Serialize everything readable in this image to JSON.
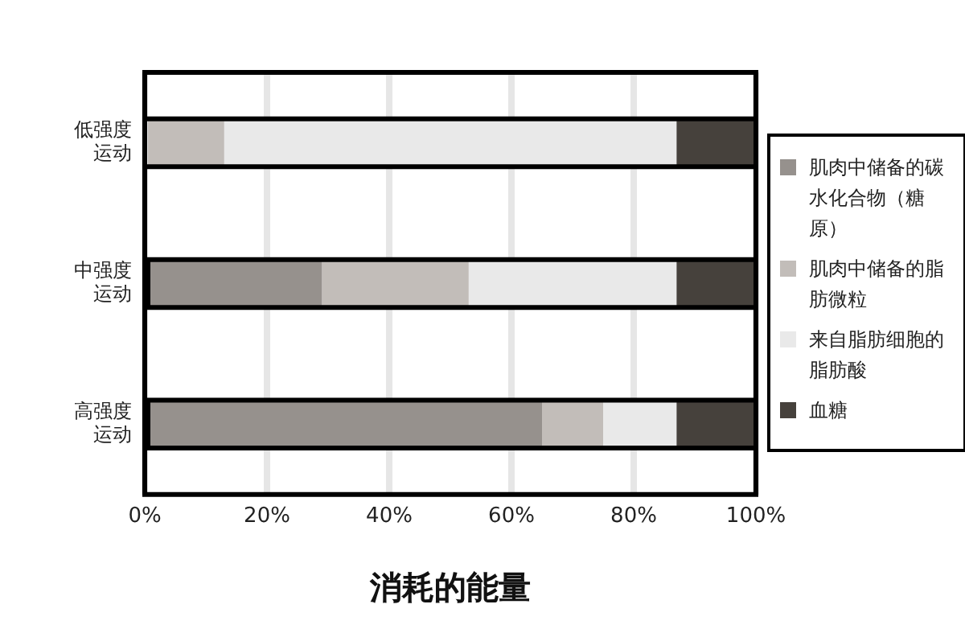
{
  "chart_data": {
    "type": "bar",
    "orientation": "horizontal",
    "stacked": true,
    "xlabel": "消耗的能量",
    "categories": [
      "低强度运动",
      "中强度运动",
      "高强度运动"
    ],
    "series": [
      {
        "name": "肌肉中储备的碳水化合物（糖原）",
        "color": "#96918d",
        "values": [
          0,
          29,
          65
        ]
      },
      {
        "name": "肌肉中储备的脂肪微粒",
        "color": "#c2bdb9",
        "values": [
          13,
          24,
          10
        ]
      },
      {
        "name": "来自脂肪细胞的脂肪酸",
        "color": "#e9e9e9",
        "values": [
          74,
          34,
          12
        ]
      },
      {
        "name": "血糖",
        "color": "#46413c",
        "values": [
          13,
          13,
          13
        ]
      }
    ],
    "xlim": [
      0,
      100
    ],
    "xticks": [
      {
        "value": 0,
        "label": "0%"
      },
      {
        "value": 20,
        "label": "20%"
      },
      {
        "value": 40,
        "label": "40%"
      },
      {
        "value": 60,
        "label": "60%"
      },
      {
        "value": 80,
        "label": "80%"
      },
      {
        "value": 100,
        "label": "100%"
      }
    ],
    "grid": "x",
    "legend": "right"
  }
}
